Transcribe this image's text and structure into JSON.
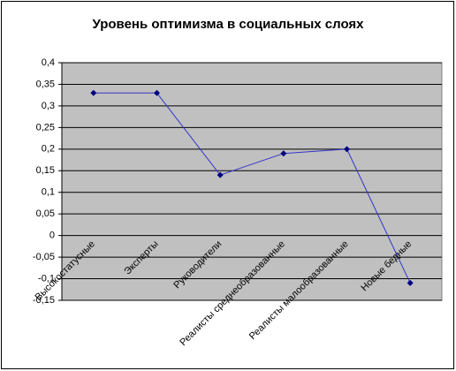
{
  "chart_data": {
    "type": "line",
    "title": "Уровень оптимизма в социальных слоях",
    "categories": [
      "Высокостатусные",
      "Эксперты",
      "Руководители",
      "Реалисты среднеобразованные",
      "Реалисты малообразованные",
      "Новые бедные"
    ],
    "values": [
      0.33,
      0.33,
      0.14,
      0.19,
      0.2,
      -0.11
    ],
    "color": "#3333cc",
    "marker_color": "#000080",
    "plot_background": "#c0c0c0",
    "ylim": [
      -0.15,
      0.4
    ],
    "yticks": [
      {
        "value": -0.15,
        "label": "-0,15"
      },
      {
        "value": -0.1,
        "label": "-0,1"
      },
      {
        "value": -0.05,
        "label": "-0,05"
      },
      0,
      {
        "value": 0.05,
        "label": "0,05"
      },
      {
        "value": 0.1,
        "label": "0,1"
      },
      {
        "value": 0.15,
        "label": "0,15"
      },
      {
        "value": 0.2,
        "label": "0,2"
      },
      {
        "value": 0.25,
        "label": "0,25"
      },
      {
        "value": 0.3,
        "label": "0,3"
      },
      {
        "value": 0.35,
        "label": "0,35"
      },
      {
        "value": 0.4,
        "label": "0,4"
      }
    ],
    "grid": true
  }
}
